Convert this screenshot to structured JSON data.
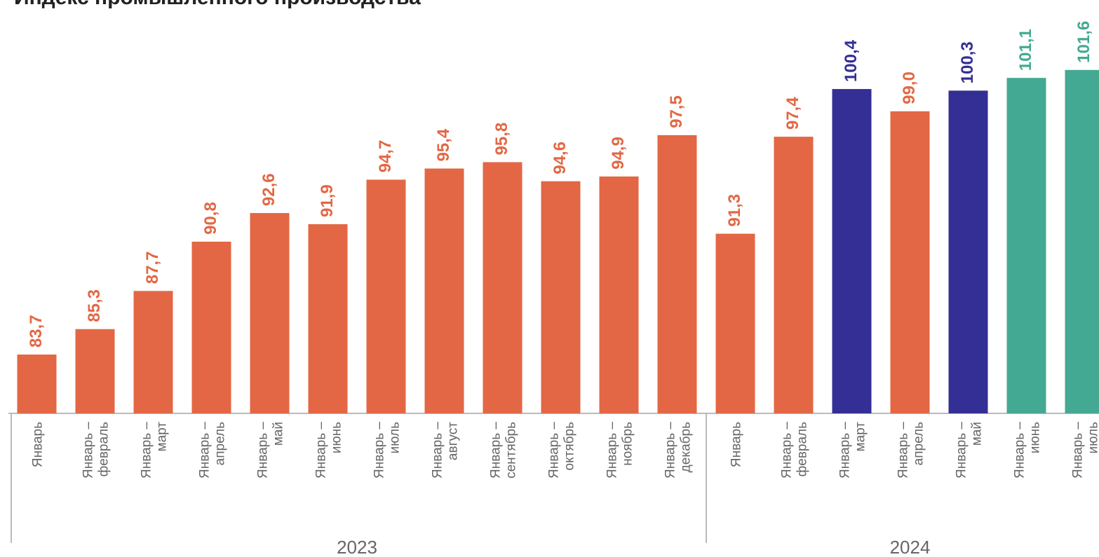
{
  "chart_data": {
    "type": "bar",
    "title": "Индекс промышленного производства",
    "categories": [
      "Январь",
      "Январь –\nфевраль",
      "Январь –\nмарт",
      "Январь –\nапрель",
      "Январь –\nмай",
      "Январь –\nиюнь",
      "Январь –\nиюль",
      "Январь –\nавгуст",
      "Январь –\nсентябрь",
      "Январь –\nоктябрь",
      "Январь –\nноябрь",
      "Январь –\nдекабрь",
      "Январь",
      "Январь –\nфевраль",
      "Январь –\nмарт",
      "Январь –\nапрель",
      "Январь –\nмай",
      "Январь –\nиюнь",
      "Январь –\nиюль"
    ],
    "values": [
      83.7,
      85.3,
      87.7,
      90.8,
      92.6,
      91.9,
      94.7,
      95.4,
      95.8,
      94.6,
      94.9,
      97.5,
      91.3,
      97.4,
      100.4,
      99.0,
      100.3,
      101.1,
      101.6
    ],
    "value_labels": [
      "83,7",
      "85,3",
      "87,7",
      "90,8",
      "92,6",
      "91,9",
      "94,7",
      "95,4",
      "95,8",
      "94,6",
      "94,9",
      "97,5",
      "91,3",
      "97,4",
      "100,4",
      "99,0",
      "100,3",
      "101,1",
      "101,6"
    ],
    "colors": [
      "#e36744",
      "#e36744",
      "#e36744",
      "#e36744",
      "#e36744",
      "#e36744",
      "#e36744",
      "#e36744",
      "#e36744",
      "#e36744",
      "#e36744",
      "#e36744",
      "#e36744",
      "#e36744",
      "#332f94",
      "#e36744",
      "#332f94",
      "#44a992",
      "#44a992"
    ],
    "groups": [
      {
        "label": "2023",
        "size": 12
      },
      {
        "label": "2024",
        "size": 7
      }
    ],
    "ylim": [
      80,
      106
    ]
  }
}
